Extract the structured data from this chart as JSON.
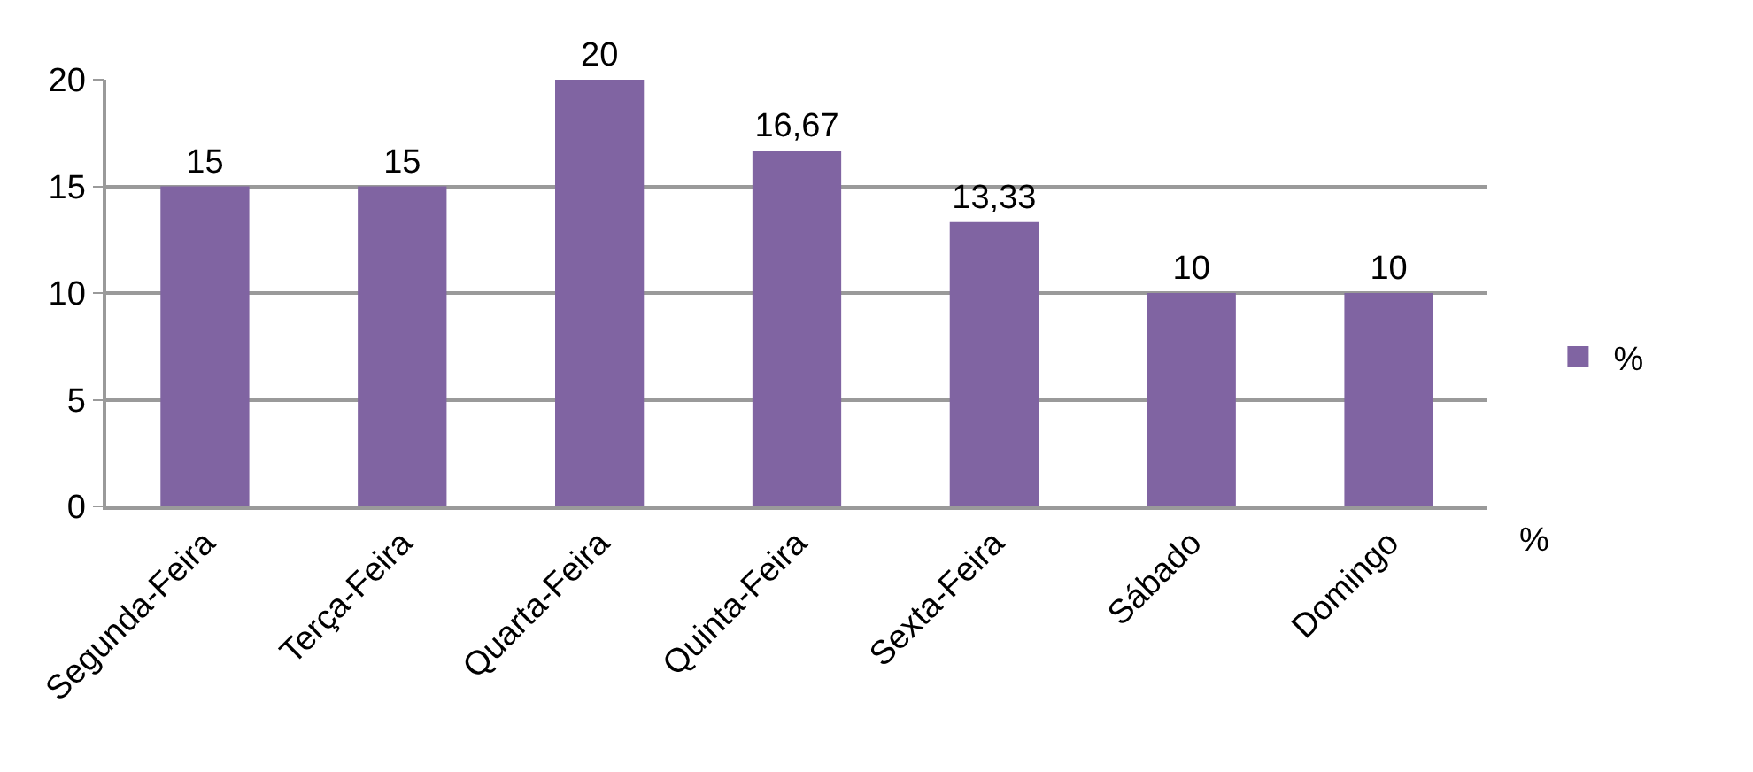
{
  "chart_data": {
    "type": "bar",
    "categories": [
      "Segunda-Feira",
      "Terça-Feira",
      "Quarta-Feira",
      "Quinta-Feira",
      "Sexta-Feira",
      "Sábado",
      "Domingo"
    ],
    "series": [
      {
        "name": "%",
        "color": "#8064a2",
        "values": [
          15,
          15,
          20,
          16.67,
          13.33,
          10,
          10
        ],
        "value_labels": [
          "15",
          "15",
          "20",
          "16,67",
          "13,33",
          "10",
          "10"
        ]
      }
    ],
    "ylim": [
      0,
      20
    ],
    "yticks": [
      0,
      5,
      10,
      15,
      20
    ],
    "grid": "y",
    "legend": "right",
    "annotations": [
      "%"
    ]
  }
}
